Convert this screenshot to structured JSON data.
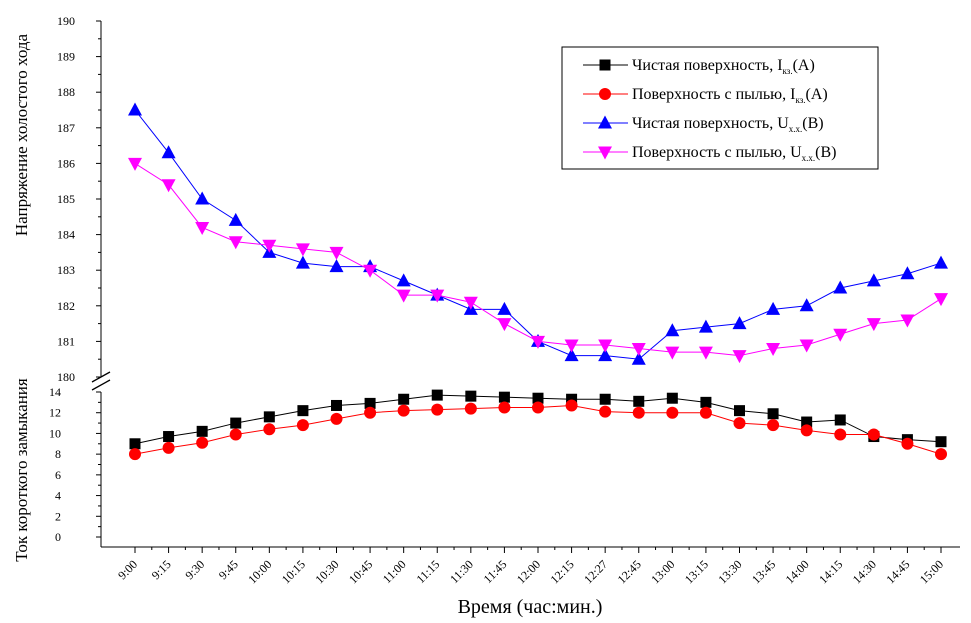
{
  "chart_data": {
    "type": "line",
    "xlabel": "Время (час:мин.)",
    "categories": [
      "9:00",
      "9:15",
      "9:30",
      "9:45",
      "10:00",
      "10:15",
      "10:30",
      "10:45",
      "11:00",
      "11:15",
      "11:30",
      "11:45",
      "12:00",
      "12:15",
      "12:27",
      "12:45",
      "13:00",
      "13:15",
      "13:30",
      "13:45",
      "14:00",
      "14:15",
      "14:30",
      "14:45",
      "15:00"
    ],
    "upper_panel": {
      "ylabel": "Напряжение холостого хода",
      "ylim": [
        180,
        190
      ],
      "yticks": [
        180,
        181,
        182,
        183,
        184,
        185,
        186,
        187,
        188,
        189,
        190
      ]
    },
    "lower_panel": {
      "ylabel": "Ток короткого замыкания",
      "ylim": [
        0,
        14
      ],
      "yticks": [
        0,
        2,
        4,
        6,
        8,
        10,
        12,
        14
      ]
    },
    "series": [
      {
        "name_main": "Чистая поверхность, I",
        "name_sub": "кз.",
        "name_unit": "(A)",
        "panel": "lower",
        "color": "#000000",
        "marker": "square",
        "values": [
          9.0,
          9.7,
          10.2,
          11.0,
          11.6,
          12.2,
          12.7,
          12.9,
          13.3,
          13.7,
          13.6,
          13.5,
          13.4,
          13.3,
          13.3,
          13.1,
          13.4,
          13.0,
          12.2,
          11.9,
          11.1,
          11.3,
          9.7,
          9.4,
          9.2
        ]
      },
      {
        "name_main": "Поверхность с пылью, I",
        "name_sub": "кз.",
        "name_unit": "(A)",
        "panel": "lower",
        "color": "#ff0000",
        "marker": "circle",
        "values": [
          8.0,
          8.6,
          9.1,
          9.9,
          10.4,
          10.8,
          11.4,
          12.0,
          12.2,
          12.3,
          12.4,
          12.5,
          12.5,
          12.7,
          12.1,
          12.0,
          12.0,
          12.0,
          11.0,
          10.8,
          10.3,
          9.9,
          9.9,
          9.0,
          8.0
        ]
      },
      {
        "name_main": "Чистая поверхность, U",
        "name_sub": "х.х.",
        "name_unit": "(B)",
        "panel": "upper",
        "color": "#0000ff",
        "marker": "triangle-up",
        "values": [
          187.5,
          186.3,
          185.0,
          184.4,
          183.5,
          183.2,
          183.1,
          183.1,
          182.7,
          182.3,
          181.9,
          181.9,
          181.0,
          180.6,
          180.6,
          180.5,
          181.3,
          181.4,
          181.5,
          181.9,
          182.0,
          182.5,
          182.7,
          182.9,
          183.2
        ]
      },
      {
        "name_main": "Поверхность с пылью, U",
        "name_sub": "х.х.",
        "name_unit": "(B)",
        "panel": "upper",
        "color": "#ff00ff",
        "marker": "triangle-down",
        "values": [
          186.0,
          185.4,
          184.2,
          183.8,
          183.7,
          183.6,
          183.5,
          183.0,
          182.3,
          182.3,
          182.1,
          181.5,
          181.0,
          180.9,
          180.9,
          180.8,
          180.7,
          180.7,
          180.6,
          180.8,
          180.9,
          181.2,
          181.5,
          181.6,
          182.2
        ]
      }
    ],
    "legend_position": "top-right",
    "grid": false
  }
}
